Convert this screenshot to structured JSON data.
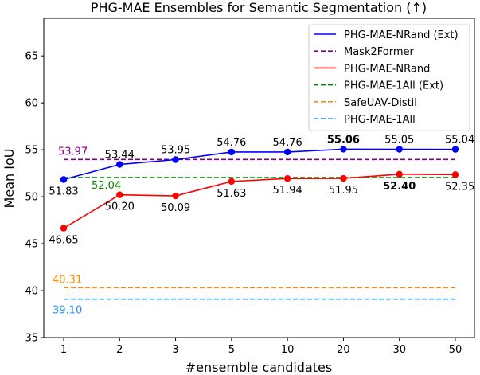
{
  "chart_data": {
    "type": "line",
    "title": "PHG-MAE Ensembles for Semantic Segmentation (↑)",
    "xlabel": "#ensemble candidates",
    "ylabel": "Mean IoU",
    "categories": [
      "1",
      "2",
      "3",
      "5",
      "10",
      "20",
      "30",
      "50"
    ],
    "ylim": [
      35,
      69
    ],
    "yticks": [
      35,
      40,
      45,
      50,
      55,
      60,
      65
    ],
    "grid": false,
    "legend_position": "top-right",
    "series": [
      {
        "name": "PHG-MAE-NRand (Ext)",
        "color": "#0000ff",
        "values": [
          51.83,
          53.44,
          53.95,
          54.76,
          54.76,
          55.06,
          55.05,
          55.04
        ],
        "labels": [
          "51.83",
          "53.44",
          "53.95",
          "54.76",
          "54.76",
          "55.06",
          "55.05",
          "55.04"
        ],
        "label_side": [
          "below",
          "above",
          "above",
          "above",
          "above",
          "above",
          "above",
          "above"
        ],
        "bold_index": 5
      },
      {
        "name": "PHG-MAE-NRand",
        "color": "#ff0000",
        "values": [
          46.65,
          50.2,
          50.09,
          51.63,
          51.94,
          51.95,
          52.4,
          52.35
        ],
        "labels": [
          "46.65",
          "50.20",
          "50.09",
          "51.63",
          "51.94",
          "51.95",
          "52.40",
          "52.35"
        ],
        "label_side": [
          "below",
          "below",
          "below",
          "below",
          "below",
          "below",
          "below",
          "below"
        ],
        "bold_index": 6
      }
    ],
    "baselines": [
      {
        "name": "Mask2Former",
        "color": "#800080",
        "value": 53.97,
        "label": "53.97"
      },
      {
        "name": "PHG-MAE-1All (Ext)",
        "color": "#008000",
        "value": 52.04,
        "label": "52.04"
      },
      {
        "name": "SafeUAV-Distil",
        "color": "#ff8c00",
        "value": 40.31,
        "label": "40.31"
      },
      {
        "name": "PHG-MAE-1All",
        "color": "#1e90ff",
        "value": 39.1,
        "label": "39.10"
      }
    ],
    "legend_order": [
      "PHG-MAE-NRand (Ext)",
      "Mask2Former",
      "PHG-MAE-NRand",
      "PHG-MAE-1All (Ext)",
      "SafeUAV-Distil",
      "PHG-MAE-1All"
    ]
  }
}
